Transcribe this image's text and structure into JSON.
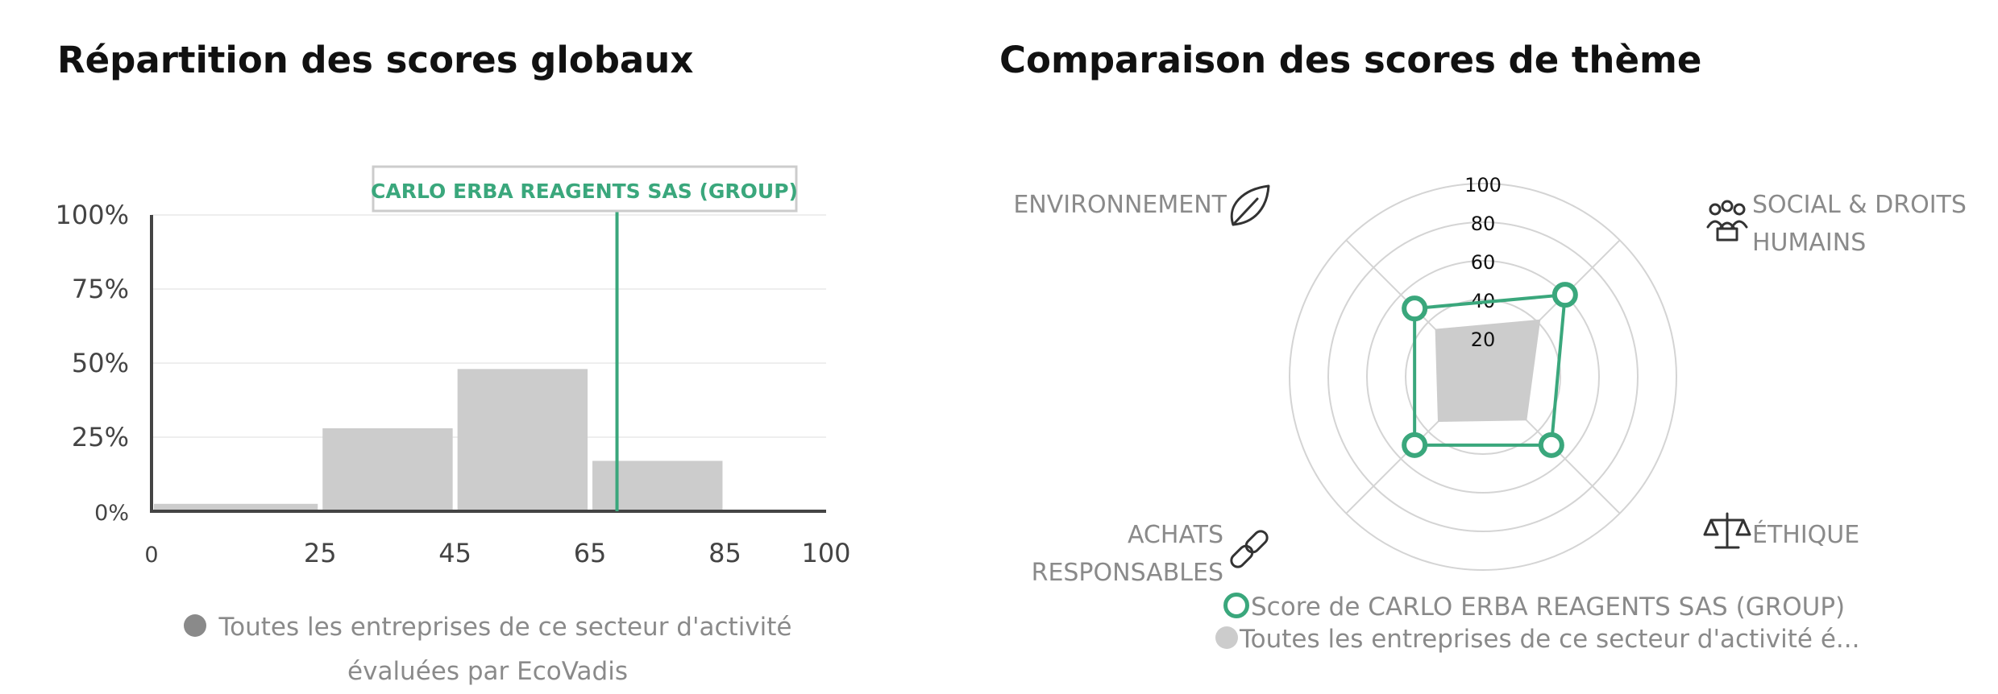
{
  "colors": {
    "accent": "#3aa77c",
    "bars": "#cccccc",
    "axis": "#444444",
    "grid": "#eeeeee",
    "legend_text": "#8a8a8a"
  },
  "left": {
    "title": "Répartition des scores globaux",
    "legend_text": "Toutes les entreprises de ce secteur d'activité évaluées par EcoVadis"
  },
  "right": {
    "title": "Comparaison des scores de thème",
    "legend_company": "Score de CARLO ERBA REAGENTS SAS (GROUP)",
    "legend_all": "Toutes les entreprises de ce secteur d'activité é..."
  },
  "chart_data": [
    {
      "type": "bar",
      "title": "Répartition des scores globaux",
      "x_tick_labels": [
        "0",
        "25",
        "45",
        "65",
        "85",
        "100"
      ],
      "y_tick_labels": [
        "0%",
        "25%",
        "50%",
        "75%",
        "100%"
      ],
      "ylim": [
        0,
        100
      ],
      "bins": [
        {
          "from": 0,
          "to": 25,
          "value": 2.5
        },
        {
          "from": 25,
          "to": 45,
          "value": 28
        },
        {
          "from": 45,
          "to": 65,
          "value": 48
        },
        {
          "from": 65,
          "to": 85,
          "value": 17
        },
        {
          "from": 85,
          "to": 100,
          "value": 0
        }
      ],
      "marker": {
        "label": "CARLO ERBA REAGENTS SAS (GROUP)",
        "score": 69
      },
      "legend": [
        "Toutes les entreprises de ce secteur d'activité évaluées par EcoVadis"
      ],
      "grid": true
    },
    {
      "type": "radar",
      "title": "Comparaison des scores de thème",
      "axes": [
        {
          "label_lines": [
            "ENVIRONNEMENT"
          ],
          "icon": "leaf-icon"
        },
        {
          "label_lines": [
            "SOCIAL & DROITS",
            "HUMAINS"
          ],
          "icon": "people-icon"
        },
        {
          "label_lines": [
            "ÉTHIQUE"
          ],
          "icon": "scales-icon"
        },
        {
          "label_lines": [
            "ACHATS",
            "RESPONSABLES"
          ],
          "icon": "link-icon"
        }
      ],
      "ring_labels": [
        "20",
        "40",
        "60",
        "80",
        "100"
      ],
      "rlim": [
        0,
        100
      ],
      "series": [
        {
          "name": "Score de CARLO ERBA REAGENTS SAS (GROUP)",
          "values": [
            50,
            60,
            50,
            50
          ]
        },
        {
          "name": "Toutes les entreprises de ce secteur d'activité é...",
          "values": [
            35,
            42,
            32,
            33
          ]
        }
      ]
    }
  ]
}
